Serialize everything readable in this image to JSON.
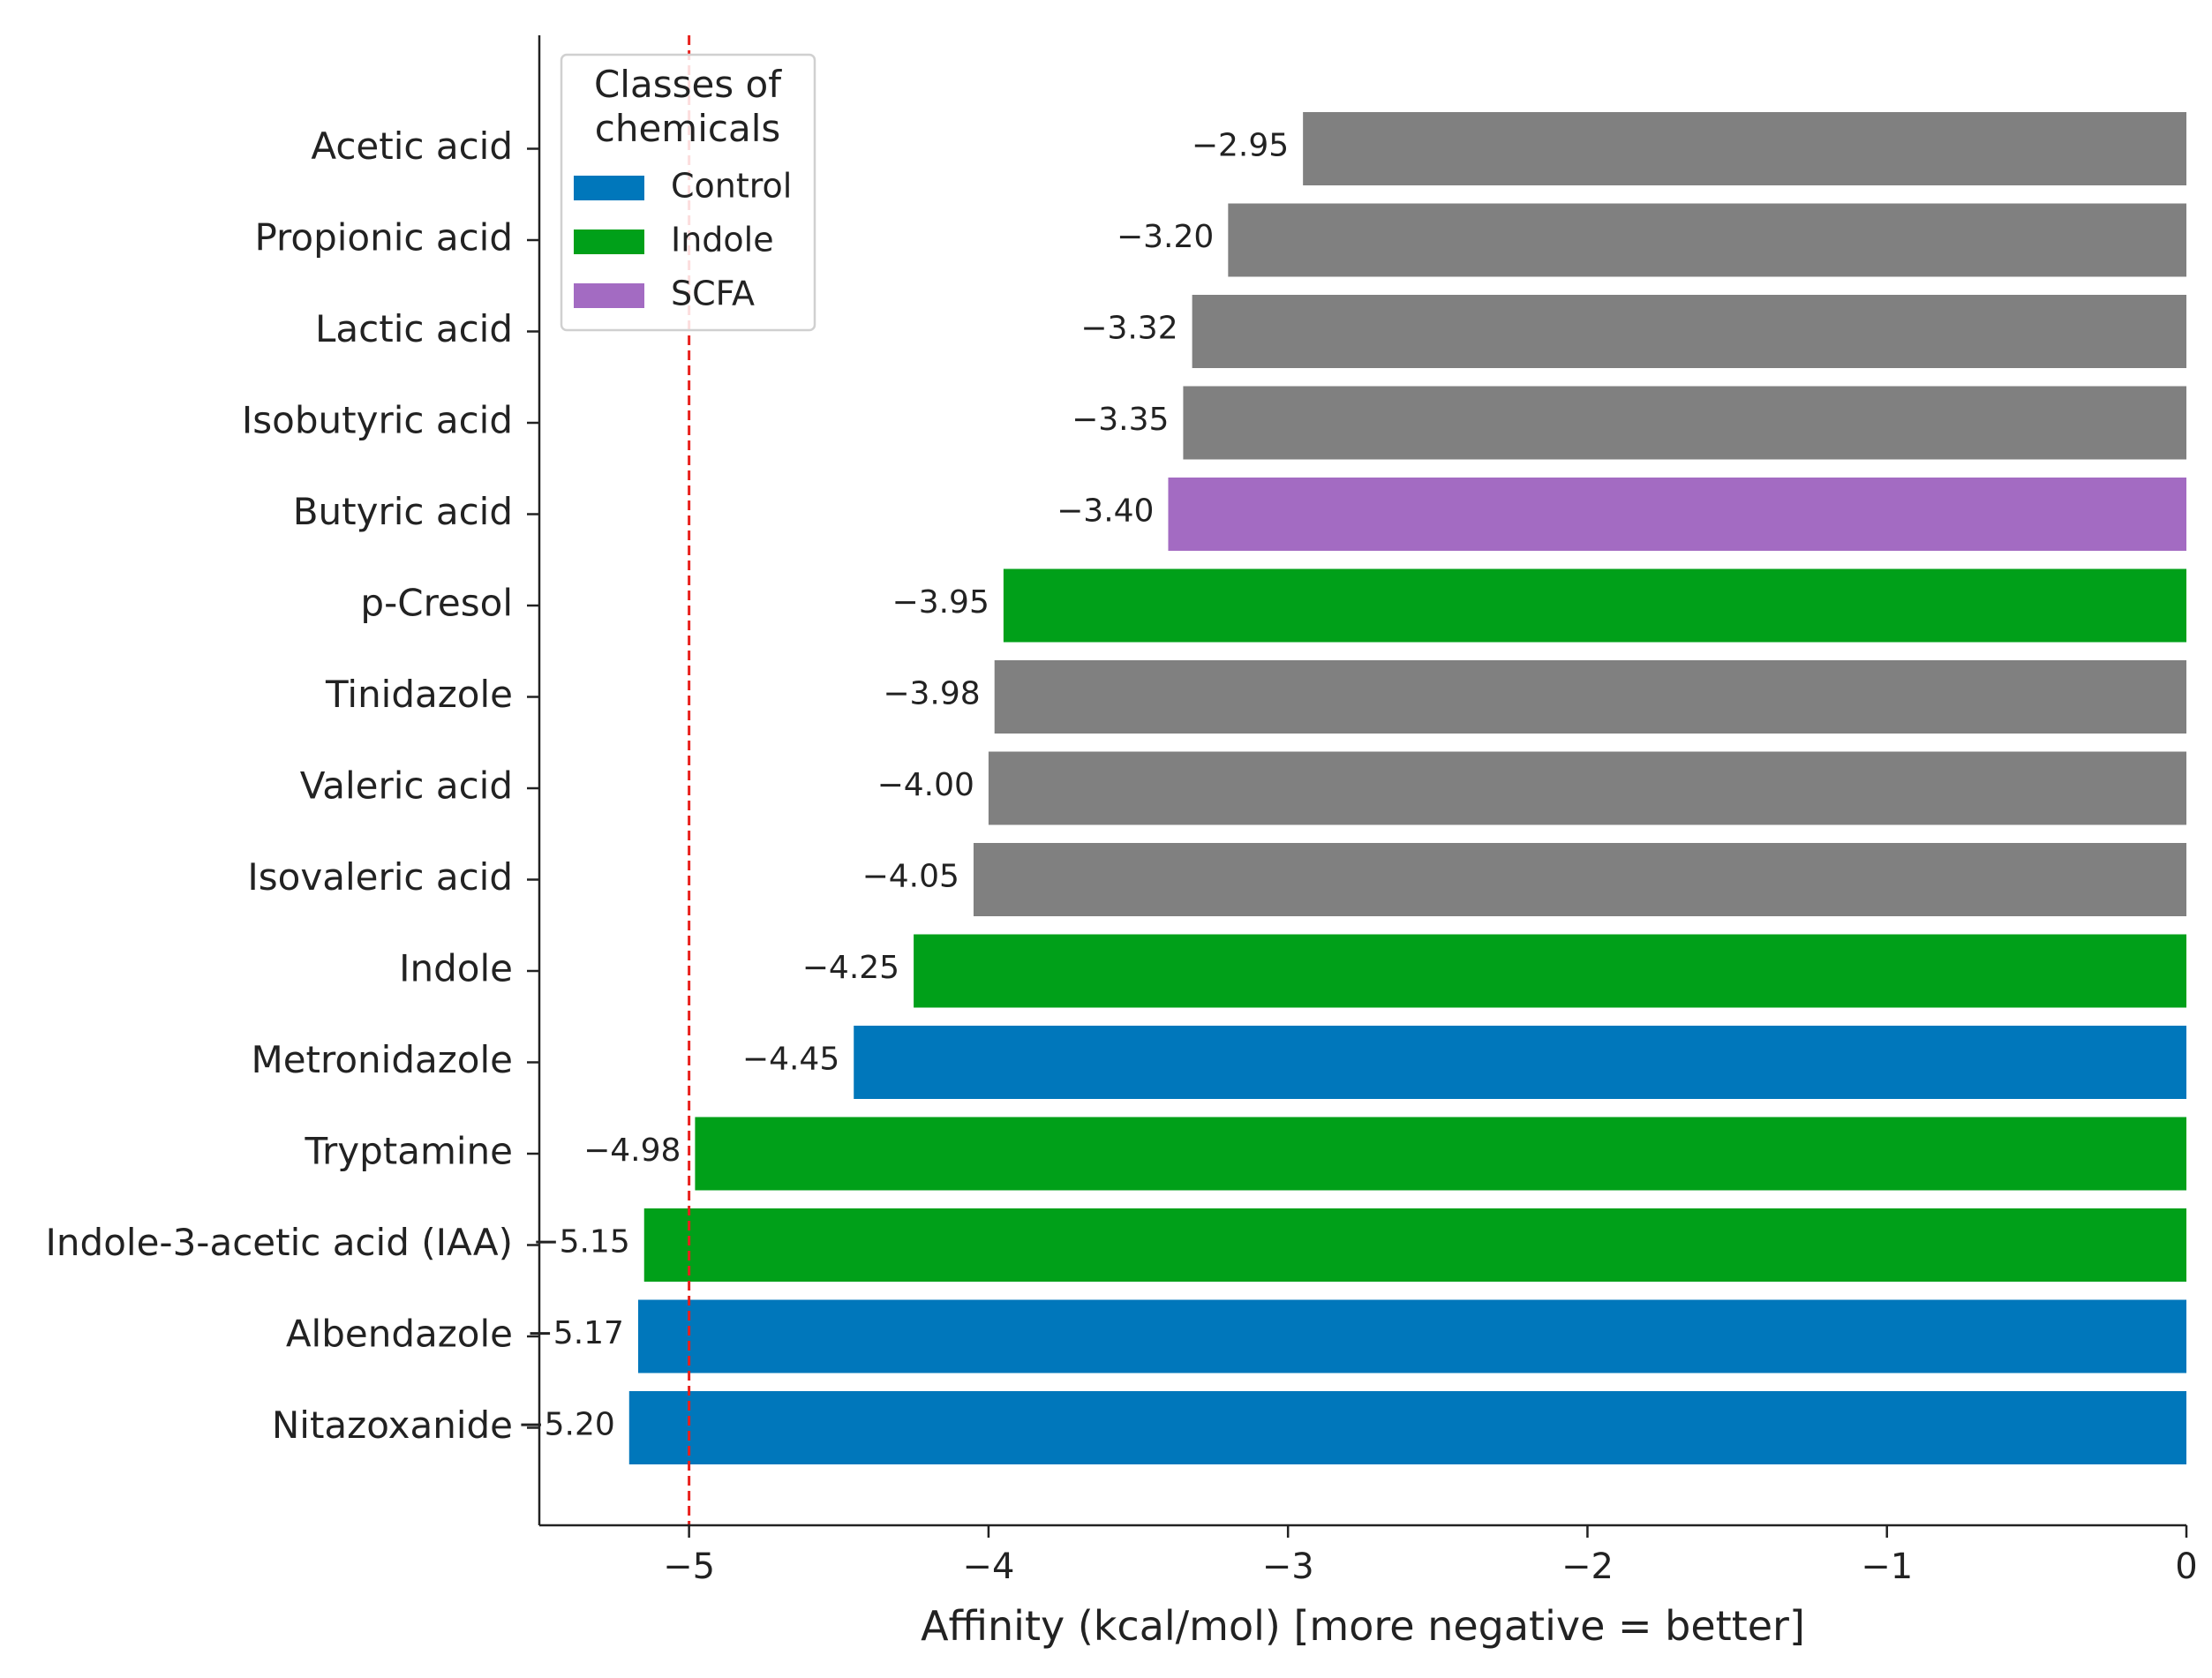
{
  "chart_data": {
    "type": "bar",
    "orientation": "horizontal",
    "title": "",
    "xlabel": "Affinity (kcal/mol) [more negative = better]",
    "ylabel": "",
    "xlim": [
      -5.5,
      0
    ],
    "xticks": [
      -5,
      -4,
      -3,
      -2,
      -1,
      0
    ],
    "xtick_labels": [
      "−5",
      "−4",
      "−3",
      "−2",
      "−1",
      "0"
    ],
    "grid": false,
    "reference_line": {
      "value": -5,
      "style": "dashed",
      "color": "#e8201c"
    },
    "categories": [
      "Acetic acid",
      "Propionic acid",
      "Lactic acid",
      "Isobutyric acid",
      "Butyric acid",
      "p-Cresol",
      "Tinidazole",
      "Valeric acid",
      "Isovaleric acid",
      "Indole",
      "Metronidazole",
      "Tryptamine",
      "Indole-3-acetic acid (IAA)",
      "Albendazole",
      "Nitazoxanide"
    ],
    "values": [
      -2.95,
      -3.2,
      -3.32,
      -3.35,
      -3.4,
      -3.95,
      -3.98,
      -4.0,
      -4.05,
      -4.25,
      -4.45,
      -4.98,
      -5.15,
      -5.17,
      -5.2
    ],
    "value_labels": [
      "−2.95",
      "−3.20",
      "−3.32",
      "−3.35",
      "−3.40",
      "−3.95",
      "−3.98",
      "−4.00",
      "−4.05",
      "−4.25",
      "−4.45",
      "−4.98",
      "−5.15",
      "−5.17",
      "−5.20"
    ],
    "bar_classes": [
      "Other",
      "Other",
      "Other",
      "Other",
      "SCFA",
      "Indole",
      "Other",
      "Other",
      "Other",
      "Indole",
      "Control",
      "Indole",
      "Indole",
      "Control",
      "Control"
    ],
    "class_colors": {
      "Control": "#0077bb",
      "Indole": "#00a019",
      "SCFA": "#a36bc2",
      "Other": "#808080"
    },
    "legend": {
      "title_lines": [
        "Classes of",
        "chemicals"
      ],
      "placement": "upper-left",
      "entries": [
        {
          "label": "Control",
          "class": "Control"
        },
        {
          "label": "Indole",
          "class": "Indole"
        },
        {
          "label": "SCFA",
          "class": "SCFA"
        }
      ]
    }
  }
}
